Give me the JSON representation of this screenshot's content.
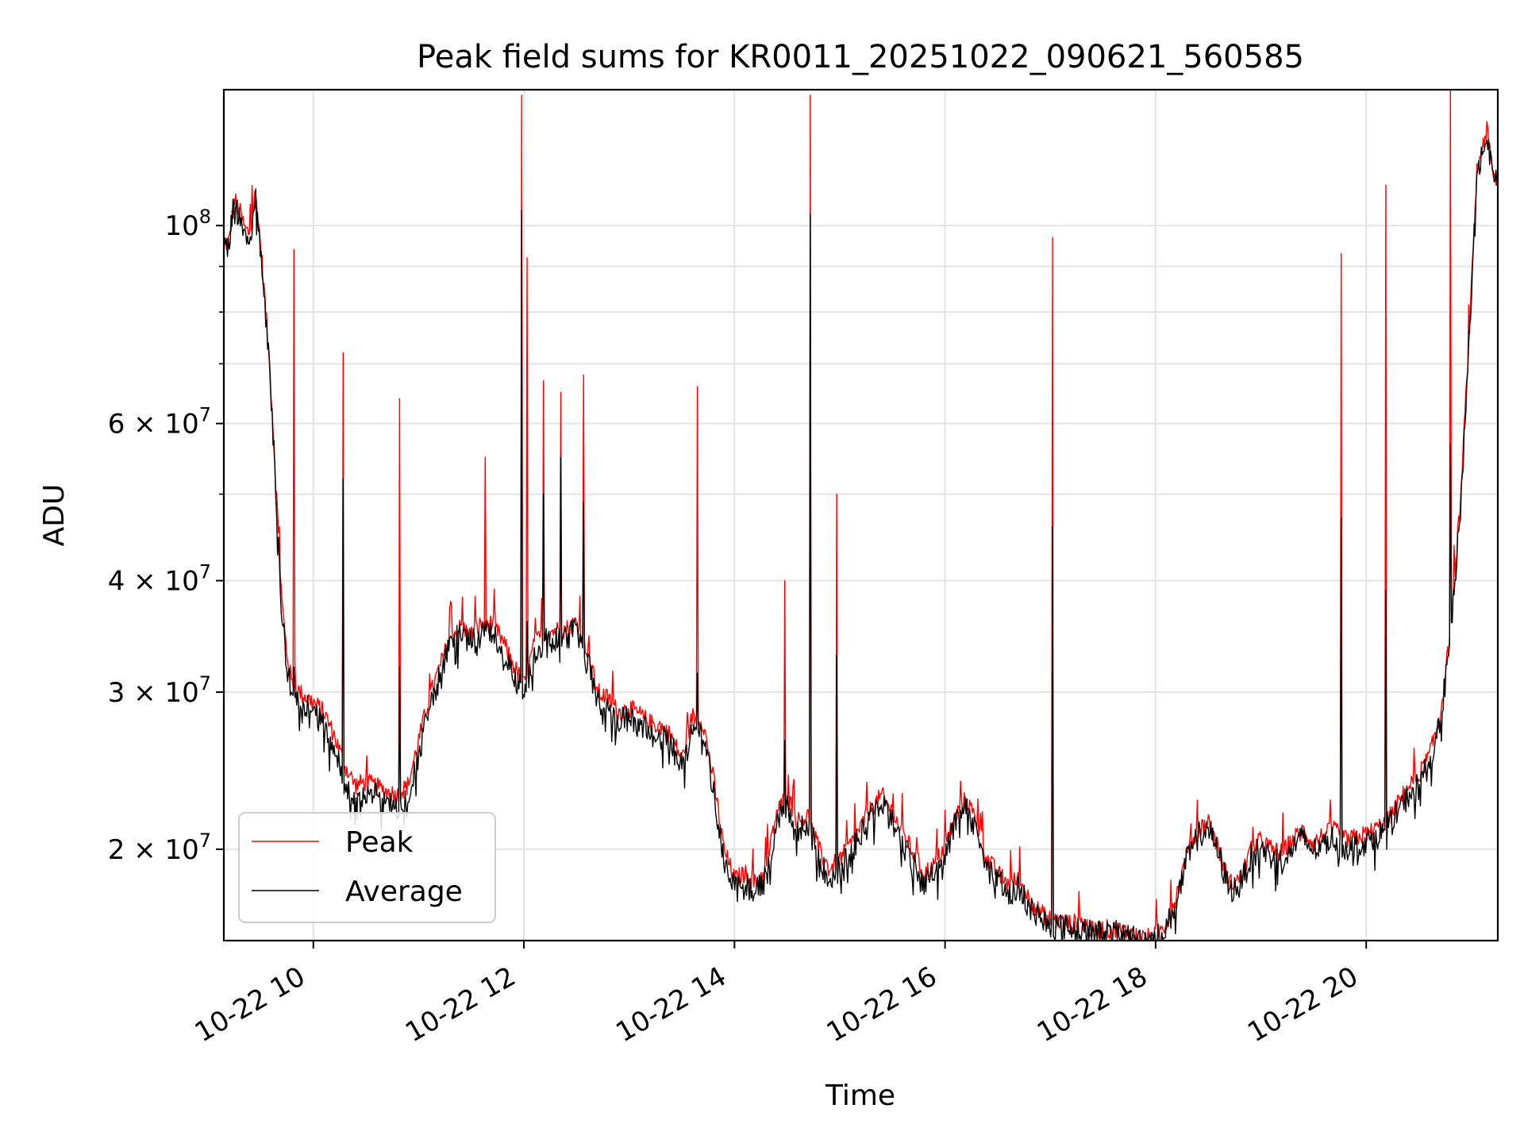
{
  "chart_data": {
    "type": "line",
    "title": "Peak field sums for KR0011_20251022_090621_560585",
    "xlabel": "Time",
    "ylabel": "ADU",
    "x_range_hours": [
      9.15,
      21.25
    ],
    "ylim": [
      15800000,
      142000000
    ],
    "yscale": "log",
    "grid": true,
    "legend_position": "lower-left",
    "x_ticks": [
      {
        "value": 10,
        "label": "10-22 10"
      },
      {
        "value": 12,
        "label": "10-22 12"
      },
      {
        "value": 14,
        "label": "10-22 14"
      },
      {
        "value": 16,
        "label": "10-22 16"
      },
      {
        "value": 18,
        "label": "10-22 18"
      },
      {
        "value": 20,
        "label": "10-22 20"
      }
    ],
    "y_major_ticks": [
      {
        "value": 20000000,
        "base": "2 × 10",
        "exp": "7"
      },
      {
        "value": 30000000,
        "base": "3 × 10",
        "exp": "7"
      },
      {
        "value": 40000000,
        "base": "4 × 10",
        "exp": "7"
      },
      {
        "value": 60000000,
        "base": "6 × 10",
        "exp": "7"
      },
      {
        "value": 100000000,
        "base": "10",
        "exp": "8"
      }
    ],
    "y_minor_ticks": [
      50000000,
      70000000,
      80000000,
      90000000
    ],
    "series": [
      {
        "name": "Peak",
        "color": "#ff0000",
        "points": [
          [
            9.15,
            95000000
          ],
          [
            9.2,
            96000000
          ],
          [
            9.25,
            107000000
          ],
          [
            9.3,
            104000000
          ],
          [
            9.35,
            99000000
          ],
          [
            9.4,
            98000000
          ],
          [
            9.45,
            109000000
          ],
          [
            9.5,
            95000000
          ],
          [
            9.55,
            80000000
          ],
          [
            9.6,
            65000000
          ],
          [
            9.65,
            50000000
          ],
          [
            9.7,
            38000000
          ],
          [
            9.75,
            33000000
          ],
          [
            9.8,
            30500000
          ],
          [
            9.9,
            29800000
          ],
          [
            10.0,
            29200000
          ],
          [
            10.1,
            28500000
          ],
          [
            10.2,
            26800000
          ],
          [
            10.3,
            24800000
          ],
          [
            10.4,
            23600000
          ],
          [
            10.5,
            23800000
          ],
          [
            10.6,
            23500000
          ],
          [
            10.7,
            23200000
          ],
          [
            10.8,
            23000000
          ],
          [
            10.9,
            23600000
          ],
          [
            11.0,
            26500000
          ],
          [
            11.1,
            29500000
          ],
          [
            11.2,
            32000000
          ],
          [
            11.3,
            34500000
          ],
          [
            11.4,
            35500000
          ],
          [
            11.5,
            34800000
          ],
          [
            11.6,
            35800000
          ],
          [
            11.7,
            35800000
          ],
          [
            11.8,
            34200000
          ],
          [
            11.9,
            32200000
          ],
          [
            12.0,
            30500000
          ],
          [
            12.1,
            34000000
          ],
          [
            12.2,
            35000000
          ],
          [
            12.3,
            35200000
          ],
          [
            12.4,
            35300000
          ],
          [
            12.5,
            36000000
          ],
          [
            12.6,
            33500000
          ],
          [
            12.7,
            30000000
          ],
          [
            12.8,
            29500000
          ],
          [
            12.9,
            28500000
          ],
          [
            13.0,
            28800000
          ],
          [
            13.1,
            28300000
          ],
          [
            13.2,
            27700000
          ],
          [
            13.3,
            27500000
          ],
          [
            13.4,
            26800000
          ],
          [
            13.5,
            25200000
          ],
          [
            13.6,
            28200000
          ],
          [
            13.7,
            27800000
          ],
          [
            13.8,
            24000000
          ],
          [
            13.9,
            20000000
          ],
          [
            14.0,
            18500000
          ],
          [
            14.1,
            18800000
          ],
          [
            14.2,
            18300000
          ],
          [
            14.3,
            19000000
          ],
          [
            14.4,
            22000000
          ],
          [
            14.5,
            23000000
          ],
          [
            14.6,
            21500000
          ],
          [
            14.7,
            21800000
          ],
          [
            14.8,
            20000000
          ],
          [
            14.9,
            19000000
          ],
          [
            15.0,
            19500000
          ],
          [
            15.1,
            20200000
          ],
          [
            15.2,
            21200000
          ],
          [
            15.3,
            22200000
          ],
          [
            15.4,
            23000000
          ],
          [
            15.5,
            22000000
          ],
          [
            15.6,
            20800000
          ],
          [
            15.7,
            19800000
          ],
          [
            15.8,
            18800000
          ],
          [
            15.9,
            19200000
          ],
          [
            16.0,
            20200000
          ],
          [
            16.1,
            21800000
          ],
          [
            16.2,
            22800000
          ],
          [
            16.3,
            21500000
          ],
          [
            16.4,
            19500000
          ],
          [
            16.5,
            18800000
          ],
          [
            16.6,
            18300000
          ],
          [
            16.7,
            18500000
          ],
          [
            16.8,
            17600000
          ],
          [
            16.9,
            17000000
          ],
          [
            17.0,
            16700000
          ],
          [
            17.1,
            16600000
          ],
          [
            17.2,
            16500000
          ],
          [
            17.3,
            16600000
          ],
          [
            17.4,
            16200000
          ],
          [
            17.5,
            16300000
          ],
          [
            17.6,
            16250000
          ],
          [
            17.7,
            16200000
          ],
          [
            17.8,
            16000000
          ],
          [
            17.9,
            15900000
          ],
          [
            18.0,
            16000000
          ],
          [
            18.1,
            16500000
          ],
          [
            18.2,
            17800000
          ],
          [
            18.3,
            19800000
          ],
          [
            18.4,
            21000000
          ],
          [
            18.5,
            21500000
          ],
          [
            18.6,
            20000000
          ],
          [
            18.7,
            18300000
          ],
          [
            18.8,
            18500000
          ],
          [
            18.9,
            19900000
          ],
          [
            19.0,
            20500000
          ],
          [
            19.1,
            20000000
          ],
          [
            19.2,
            19800000
          ],
          [
            19.3,
            20500000
          ],
          [
            19.4,
            21000000
          ],
          [
            19.5,
            20300000
          ],
          [
            19.6,
            20800000
          ],
          [
            19.7,
            21000000
          ],
          [
            19.8,
            20500000
          ],
          [
            19.9,
            20600000
          ],
          [
            20.0,
            20800000
          ],
          [
            20.1,
            21100000
          ],
          [
            20.2,
            21500000
          ],
          [
            20.3,
            22500000
          ],
          [
            20.4,
            23500000
          ],
          [
            20.5,
            24200000
          ],
          [
            20.6,
            25500000
          ],
          [
            20.7,
            28000000
          ],
          [
            20.8,
            35000000
          ],
          [
            20.9,
            50000000
          ],
          [
            21.0,
            85000000
          ],
          [
            21.05,
            115000000
          ],
          [
            21.1,
            123000000
          ],
          [
            21.15,
            128000000
          ],
          [
            21.2,
            114000000
          ],
          [
            21.25,
            112000000
          ]
        ]
      },
      {
        "name": "Average",
        "color": "#000000",
        "points": [
          [
            9.15,
            94500000
          ],
          [
            9.2,
            95500000
          ],
          [
            9.25,
            106500000
          ],
          [
            9.3,
            103000000
          ],
          [
            9.35,
            98000000
          ],
          [
            9.4,
            97000000
          ],
          [
            9.45,
            108000000
          ],
          [
            9.5,
            94000000
          ],
          [
            9.55,
            79000000
          ],
          [
            9.6,
            64000000
          ],
          [
            9.65,
            49000000
          ],
          [
            9.7,
            37000000
          ],
          [
            9.75,
            32000000
          ],
          [
            9.8,
            29800000
          ],
          [
            9.9,
            29000000
          ],
          [
            10.0,
            28500000
          ],
          [
            10.1,
            27500000
          ],
          [
            10.2,
            25800000
          ],
          [
            10.3,
            23800000
          ],
          [
            10.4,
            23000000
          ],
          [
            10.5,
            23200000
          ],
          [
            10.6,
            23000000
          ],
          [
            10.7,
            22600000
          ],
          [
            10.8,
            22300000
          ],
          [
            10.9,
            22800000
          ],
          [
            11.0,
            25500000
          ],
          [
            11.1,
            28800000
          ],
          [
            11.2,
            31200000
          ],
          [
            11.3,
            33800000
          ],
          [
            11.4,
            34800000
          ],
          [
            11.5,
            34000000
          ],
          [
            11.6,
            35000000
          ],
          [
            11.7,
            35000000
          ],
          [
            11.8,
            33400000
          ],
          [
            11.9,
            31500000
          ],
          [
            12.0,
            29800000
          ],
          [
            12.1,
            33200000
          ],
          [
            12.2,
            34300000
          ],
          [
            12.3,
            34500000
          ],
          [
            12.4,
            34600000
          ],
          [
            12.5,
            35300000
          ],
          [
            12.6,
            32800000
          ],
          [
            12.7,
            29300000
          ],
          [
            12.8,
            28800000
          ],
          [
            12.9,
            27800000
          ],
          [
            13.0,
            28000000
          ],
          [
            13.1,
            27600000
          ],
          [
            13.2,
            27000000
          ],
          [
            13.3,
            26800000
          ],
          [
            13.4,
            26200000
          ],
          [
            13.5,
            24700000
          ],
          [
            13.6,
            27500000
          ],
          [
            13.7,
            27200000
          ],
          [
            13.8,
            23400000
          ],
          [
            13.9,
            19500000
          ],
          [
            14.0,
            18000000
          ],
          [
            14.1,
            18300000
          ],
          [
            14.2,
            17900000
          ],
          [
            14.3,
            18600000
          ],
          [
            14.4,
            21500000
          ],
          [
            14.5,
            22500000
          ],
          [
            14.6,
            21000000
          ],
          [
            14.7,
            21200000
          ],
          [
            14.8,
            19500000
          ],
          [
            14.9,
            18600000
          ],
          [
            15.0,
            19100000
          ],
          [
            15.1,
            19800000
          ],
          [
            15.2,
            20800000
          ],
          [
            15.3,
            21800000
          ],
          [
            15.4,
            22500000
          ],
          [
            15.5,
            21500000
          ],
          [
            15.6,
            20300000
          ],
          [
            15.7,
            19300000
          ],
          [
            15.8,
            18400000
          ],
          [
            15.9,
            18800000
          ],
          [
            16.0,
            19800000
          ],
          [
            16.1,
            21400000
          ],
          [
            16.2,
            22300000
          ],
          [
            16.3,
            21000000
          ],
          [
            16.4,
            19100000
          ],
          [
            16.5,
            18400000
          ],
          [
            16.6,
            17900000
          ],
          [
            16.7,
            18100000
          ],
          [
            16.8,
            17300000
          ],
          [
            16.9,
            16800000
          ],
          [
            17.0,
            16500000
          ],
          [
            17.1,
            16400000
          ],
          [
            17.2,
            16300000
          ],
          [
            17.3,
            16400000
          ],
          [
            17.4,
            16050000
          ],
          [
            17.5,
            16150000
          ],
          [
            17.6,
            16100000
          ],
          [
            17.7,
            16050000
          ],
          [
            17.8,
            15900000
          ],
          [
            17.9,
            15850000
          ],
          [
            18.0,
            15900000
          ],
          [
            18.1,
            16300000
          ],
          [
            18.2,
            17500000
          ],
          [
            18.3,
            19500000
          ],
          [
            18.4,
            20700000
          ],
          [
            18.5,
            21200000
          ],
          [
            18.6,
            19700000
          ],
          [
            18.7,
            18000000
          ],
          [
            18.8,
            18200000
          ],
          [
            18.9,
            19500000
          ],
          [
            19.0,
            20100000
          ],
          [
            19.1,
            19600000
          ],
          [
            19.2,
            19400000
          ],
          [
            19.3,
            20100000
          ],
          [
            19.4,
            20600000
          ],
          [
            19.5,
            19900000
          ],
          [
            19.6,
            20400000
          ],
          [
            19.7,
            20600000
          ],
          [
            19.8,
            20100000
          ],
          [
            19.9,
            20200000
          ],
          [
            20.0,
            20400000
          ],
          [
            20.1,
            20700000
          ],
          [
            20.2,
            21100000
          ],
          [
            20.3,
            22000000
          ],
          [
            20.4,
            23000000
          ],
          [
            20.5,
            23700000
          ],
          [
            20.6,
            25000000
          ],
          [
            20.7,
            27500000
          ],
          [
            20.8,
            34300000
          ],
          [
            20.9,
            49000000
          ],
          [
            21.0,
            84000000
          ],
          [
            21.05,
            114000000
          ],
          [
            21.1,
            122000000
          ],
          [
            21.15,
            127000000
          ],
          [
            21.2,
            113000000
          ],
          [
            21.25,
            111000000
          ]
        ]
      }
    ],
    "spikes": [
      {
        "x": 9.82,
        "peak": 94000000,
        "avg": 32000000
      },
      {
        "x": 10.28,
        "peak": 72000000,
        "avg": 52000000
      },
      {
        "x": 10.82,
        "peak": 64000000,
        "avg": 32000000
      },
      {
        "x": 11.63,
        "peak": 55000000,
        "avg": 36000000
      },
      {
        "x": 11.98,
        "peak": 140000000,
        "avg": 104000000
      },
      {
        "x": 12.03,
        "peak": 92000000,
        "avg": 36000000
      },
      {
        "x": 12.19,
        "peak": 67000000,
        "avg": 50000000
      },
      {
        "x": 12.35,
        "peak": 65000000,
        "avg": 55000000
      },
      {
        "x": 12.57,
        "peak": 68000000,
        "avg": 49000000
      },
      {
        "x": 13.65,
        "peak": 66000000,
        "avg": 31500000
      },
      {
        "x": 14.48,
        "peak": 40000000,
        "avg": 26500000
      },
      {
        "x": 14.72,
        "peak": 140000000,
        "avg": 103000000
      },
      {
        "x": 14.97,
        "peak": 50000000,
        "avg": 33000000
      },
      {
        "x": 17.02,
        "peak": 97000000,
        "avg": 46000000
      },
      {
        "x": 19.76,
        "peak": 93000000,
        "avg": 47000000
      },
      {
        "x": 20.19,
        "peak": 111000000,
        "avg": 39000000
      },
      {
        "x": 20.8,
        "peak": 142000000,
        "avg": 57000000
      }
    ]
  }
}
